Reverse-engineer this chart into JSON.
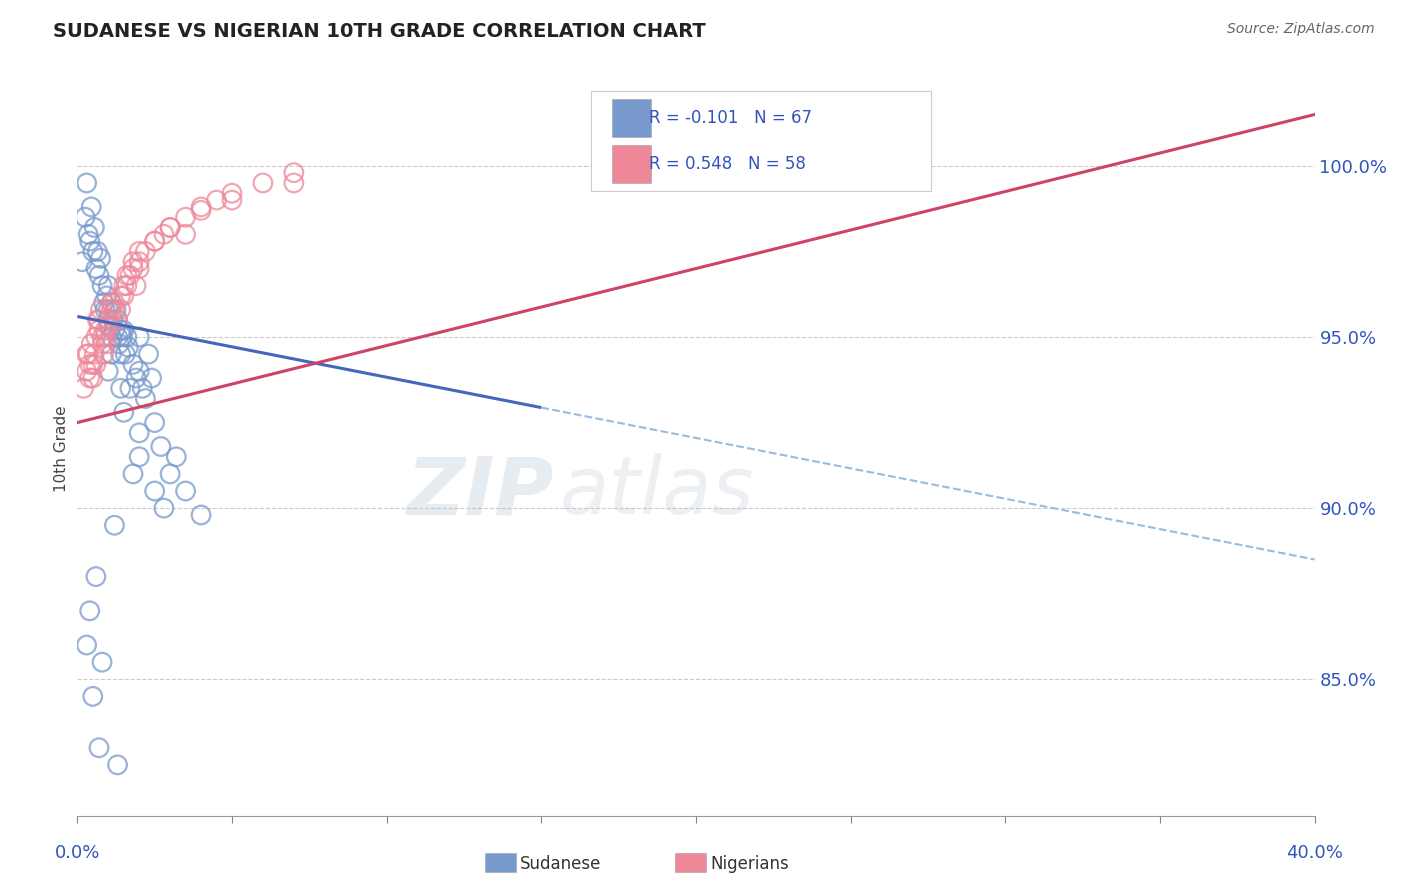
{
  "title": "SUDANESE VS NIGERIAN 10TH GRADE CORRELATION CHART",
  "source": "Source: ZipAtlas.com",
  "ylabel": "10th Grade",
  "xlim": [
    0.0,
    40.0
  ],
  "ylim": [
    81.0,
    102.5
  ],
  "yticks": [
    85.0,
    90.0,
    95.0,
    100.0
  ],
  "ytick_labels": [
    "85.0%",
    "90.0%",
    "95.0%",
    "100.0%"
  ],
  "xtick_positions": [
    0.0,
    5.0,
    10.0,
    15.0,
    20.0,
    25.0,
    30.0,
    35.0,
    40.0
  ],
  "blue_scatter_color": "#7799CC",
  "pink_scatter_color": "#EE8899",
  "blue_line_color": "#4466BB",
  "pink_line_color": "#CC4466",
  "dashed_line_color": "#99BBDD",
  "R_blue": -0.101,
  "N_blue": 67,
  "R_pink": 0.548,
  "N_pink": 58,
  "legend_R_blue": "R = -0.101",
  "legend_N_blue": "N = 67",
  "legend_R_pink": "R = 0.548",
  "legend_N_pink": "N = 58",
  "watermark_left": "ZIP",
  "watermark_right": "atlas",
  "blue_line_x0": 0.0,
  "blue_line_y0": 95.6,
  "blue_line_x1": 40.0,
  "blue_line_y1": 88.5,
  "blue_solid_x1": 15.0,
  "pink_line_x0": 0.0,
  "pink_line_y0": 92.5,
  "pink_line_x1": 40.0,
  "pink_line_y1": 101.5,
  "sudanese_x": [
    0.15,
    0.25,
    0.3,
    0.35,
    0.4,
    0.45,
    0.5,
    0.55,
    0.6,
    0.65,
    0.7,
    0.75,
    0.8,
    0.85,
    0.9,
    0.95,
    1.0,
    1.0,
    1.05,
    1.1,
    1.1,
    1.15,
    1.2,
    1.25,
    1.3,
    1.3,
    1.35,
    1.4,
    1.4,
    1.45,
    1.5,
    1.55,
    1.6,
    1.65,
    1.7,
    1.8,
    1.9,
    2.0,
    2.1,
    2.2,
    2.3,
    2.4,
    2.5,
    2.7,
    3.0,
    3.5,
    4.0,
    1.0,
    1.5,
    2.0,
    2.5,
    0.5,
    0.7,
    1.2,
    1.8,
    2.8,
    0.3,
    0.4,
    0.6,
    1.0,
    1.4,
    2.0,
    3.2,
    1.1,
    2.0,
    0.8,
    1.3
  ],
  "sudanese_y": [
    97.2,
    98.5,
    99.5,
    98.0,
    97.8,
    98.8,
    97.5,
    98.2,
    97.0,
    97.5,
    96.8,
    97.3,
    96.5,
    96.0,
    95.8,
    96.2,
    95.5,
    96.5,
    95.3,
    95.0,
    96.0,
    95.5,
    95.2,
    95.8,
    95.0,
    95.5,
    94.8,
    95.2,
    94.5,
    95.0,
    95.2,
    94.5,
    95.0,
    94.7,
    93.5,
    94.2,
    93.8,
    94.0,
    93.5,
    93.2,
    94.5,
    93.8,
    92.5,
    91.8,
    91.0,
    90.5,
    89.8,
    94.0,
    92.8,
    91.5,
    90.5,
    84.5,
    83.0,
    89.5,
    91.0,
    90.0,
    86.0,
    87.0,
    88.0,
    95.8,
    93.5,
    92.2,
    91.5,
    94.5,
    95.0,
    85.5,
    82.5
  ],
  "nigerian_x": [
    0.2,
    0.3,
    0.35,
    0.4,
    0.45,
    0.5,
    0.55,
    0.6,
    0.65,
    0.7,
    0.75,
    0.8,
    0.85,
    0.9,
    0.95,
    1.0,
    1.1,
    1.2,
    1.3,
    1.4,
    1.5,
    1.6,
    1.7,
    1.8,
    1.9,
    2.0,
    2.2,
    2.5,
    2.8,
    3.0,
    3.5,
    4.0,
    4.5,
    5.0,
    6.0,
    7.0,
    0.4,
    0.6,
    0.8,
    1.0,
    1.2,
    1.4,
    1.6,
    1.8,
    2.0,
    2.5,
    3.0,
    4.0,
    5.0,
    7.0,
    0.3,
    0.5,
    0.7,
    0.9,
    1.1,
    1.5,
    2.0,
    3.5
  ],
  "nigerian_y": [
    93.5,
    94.0,
    94.5,
    94.2,
    94.8,
    93.8,
    94.5,
    95.0,
    95.5,
    95.2,
    95.8,
    95.0,
    94.5,
    95.2,
    94.8,
    95.5,
    95.8,
    96.0,
    95.5,
    95.8,
    96.2,
    96.5,
    96.8,
    97.0,
    96.5,
    97.2,
    97.5,
    97.8,
    98.0,
    98.2,
    98.5,
    98.8,
    99.0,
    99.2,
    99.5,
    99.8,
    93.8,
    94.2,
    94.8,
    95.3,
    95.8,
    96.2,
    96.8,
    97.2,
    97.5,
    97.8,
    98.2,
    98.7,
    99.0,
    99.5,
    94.5,
    94.2,
    95.5,
    95.0,
    96.0,
    96.5,
    97.0,
    98.0
  ]
}
